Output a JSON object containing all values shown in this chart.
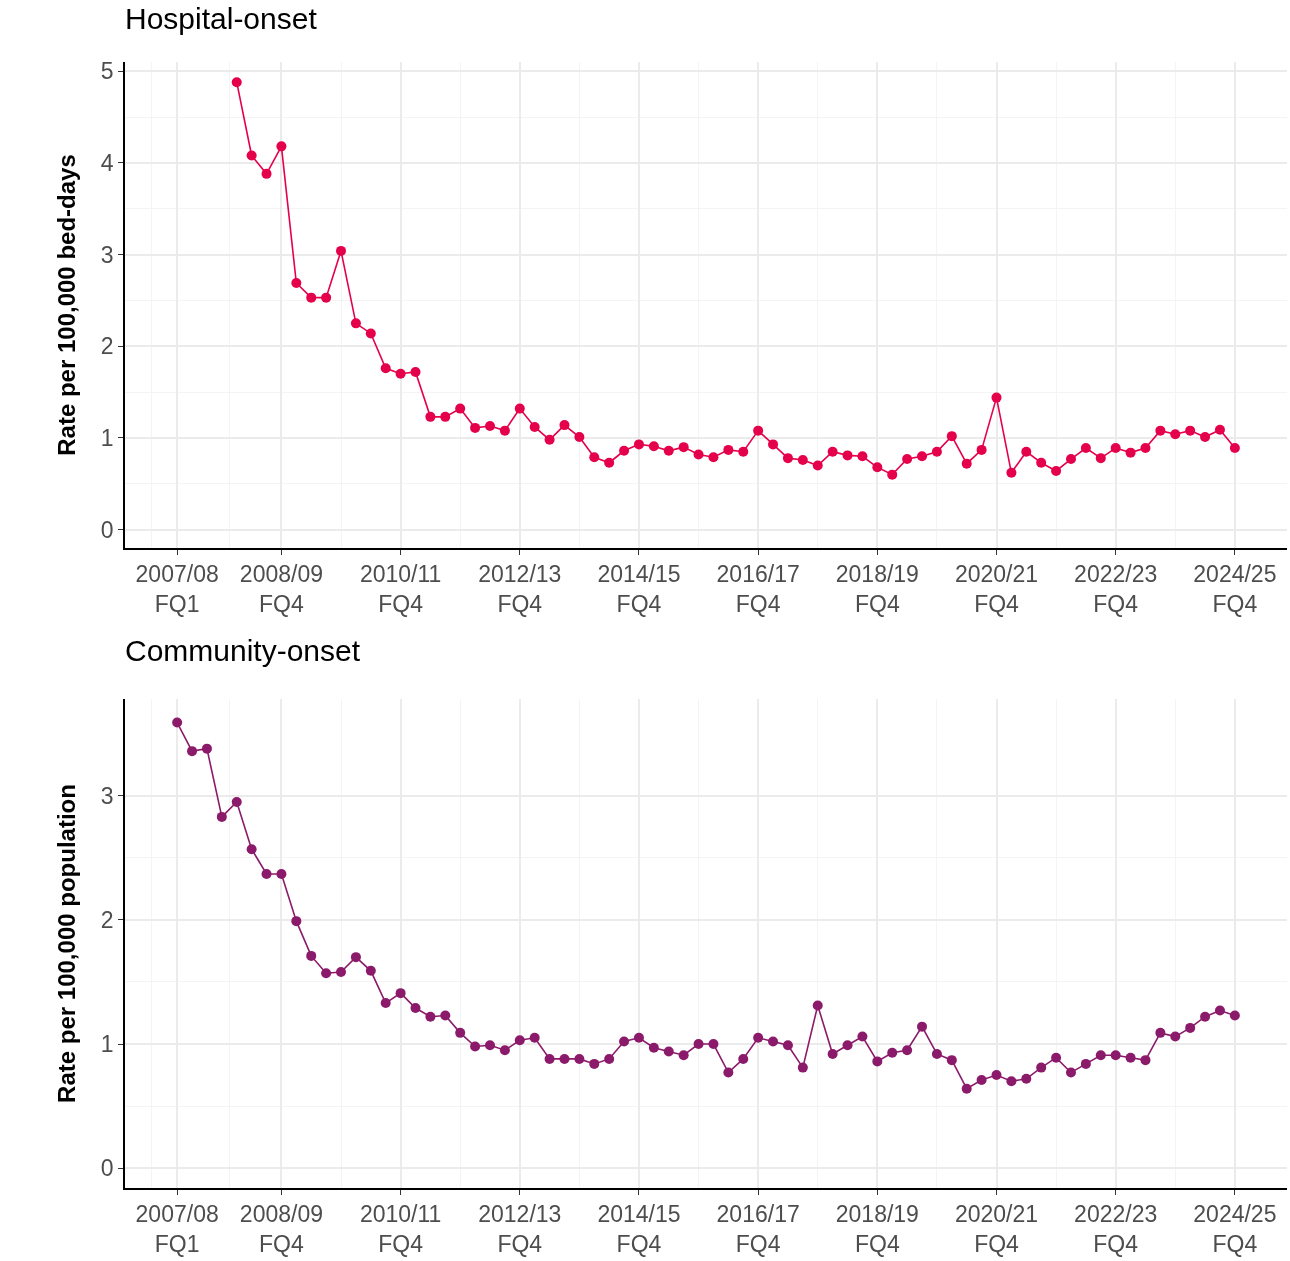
{
  "chart_data": [
    {
      "type": "line",
      "title": "Hospital-onset",
      "ylabel": "Rate per 100,000 bed-days",
      "categories": [
        "2007/08 FQ1",
        null,
        null,
        null,
        null,
        null,
        null,
        "2008/09 FQ4",
        null,
        null,
        null,
        null,
        null,
        null,
        null,
        "2010/11 FQ4",
        null,
        null,
        null,
        null,
        null,
        null,
        null,
        "2012/13 FQ4",
        null,
        null,
        null,
        null,
        null,
        null,
        null,
        "2014/15 FQ4",
        null,
        null,
        null,
        null,
        null,
        null,
        null,
        "2016/17 FQ4",
        null,
        null,
        null,
        null,
        null,
        null,
        null,
        "2018/19 FQ4",
        null,
        null,
        null,
        null,
        null,
        null,
        null,
        "2020/21 FQ4",
        null,
        null,
        null,
        null,
        null,
        null,
        null,
        "2022/23 FQ4",
        null,
        null,
        null,
        null,
        null,
        null,
        null,
        "2024/25 FQ4"
      ],
      "series": [
        {
          "color": "#e5004c",
          "values": [
            null,
            null,
            null,
            null,
            4.88,
            4.08,
            3.88,
            4.18,
            2.69,
            2.53,
            2.53,
            3.04,
            2.25,
            2.14,
            1.76,
            1.7,
            1.72,
            1.23,
            1.23,
            1.32,
            1.11,
            1.13,
            1.08,
            1.32,
            1.12,
            0.98,
            1.14,
            1.01,
            0.79,
            0.73,
            0.86,
            0.93,
            0.91,
            0.86,
            0.9,
            0.82,
            0.79,
            0.87,
            0.85,
            1.08,
            0.93,
            0.78,
            0.76,
            0.7,
            0.85,
            0.81,
            0.8,
            0.68,
            0.6,
            0.77,
            0.8,
            0.85,
            1.02,
            0.72,
            0.87,
            1.44,
            0.62,
            0.85,
            0.73,
            0.64,
            0.77,
            0.89,
            0.78,
            0.89,
            0.84,
            0.89,
            1.08,
            1.04,
            1.08,
            1.01,
            1.09,
            0.89
          ]
        }
      ],
      "ylim": [
        -0.2,
        5.1
      ],
      "yticks": [
        0,
        1,
        2,
        3,
        4,
        5
      ],
      "grid": true,
      "marker": "circle",
      "line_style": "solid"
    },
    {
      "type": "line",
      "title": "Community-onset",
      "ylabel": "Rate per 100,000 population",
      "categories": [
        "2007/08 FQ1",
        null,
        null,
        null,
        null,
        null,
        null,
        "2008/09 FQ4",
        null,
        null,
        null,
        null,
        null,
        null,
        null,
        "2010/11 FQ4",
        null,
        null,
        null,
        null,
        null,
        null,
        null,
        "2012/13 FQ4",
        null,
        null,
        null,
        null,
        null,
        null,
        null,
        "2014/15 FQ4",
        null,
        null,
        null,
        null,
        null,
        null,
        null,
        "2016/17 FQ4",
        null,
        null,
        null,
        null,
        null,
        null,
        null,
        "2018/19 FQ4",
        null,
        null,
        null,
        null,
        null,
        null,
        null,
        "2020/21 FQ4",
        null,
        null,
        null,
        null,
        null,
        null,
        null,
        "2022/23 FQ4",
        null,
        null,
        null,
        null,
        null,
        null,
        null,
        "2024/25 FQ4"
      ],
      "series": [
        {
          "color": "#8b1a6b",
          "values": [
            3.59,
            3.36,
            3.38,
            2.83,
            2.95,
            2.57,
            2.37,
            2.37,
            1.99,
            1.71,
            1.57,
            1.58,
            1.7,
            1.59,
            1.33,
            1.41,
            1.29,
            1.22,
            1.23,
            1.09,
            0.98,
            0.99,
            0.95,
            1.03,
            1.05,
            0.88,
            0.88,
            0.88,
            0.84,
            0.88,
            1.02,
            1.05,
            0.97,
            0.94,
            0.91,
            1.0,
            1.0,
            0.77,
            0.88,
            1.05,
            1.02,
            0.99,
            0.81,
            1.31,
            0.92,
            0.99,
            1.06,
            0.86,
            0.93,
            0.95,
            1.14,
            0.92,
            0.87,
            0.64,
            0.71,
            0.75,
            0.7,
            0.72,
            0.81,
            0.89,
            0.77,
            0.84,
            0.91,
            0.91,
            0.89,
            0.87,
            1.09,
            1.06,
            1.13,
            1.22,
            1.27,
            1.23
          ]
        }
      ],
      "ylim": [
        -0.16,
        3.78
      ],
      "yticks": [
        0,
        1,
        2,
        3
      ],
      "grid": true,
      "marker": "circle",
      "line_style": "solid"
    }
  ]
}
